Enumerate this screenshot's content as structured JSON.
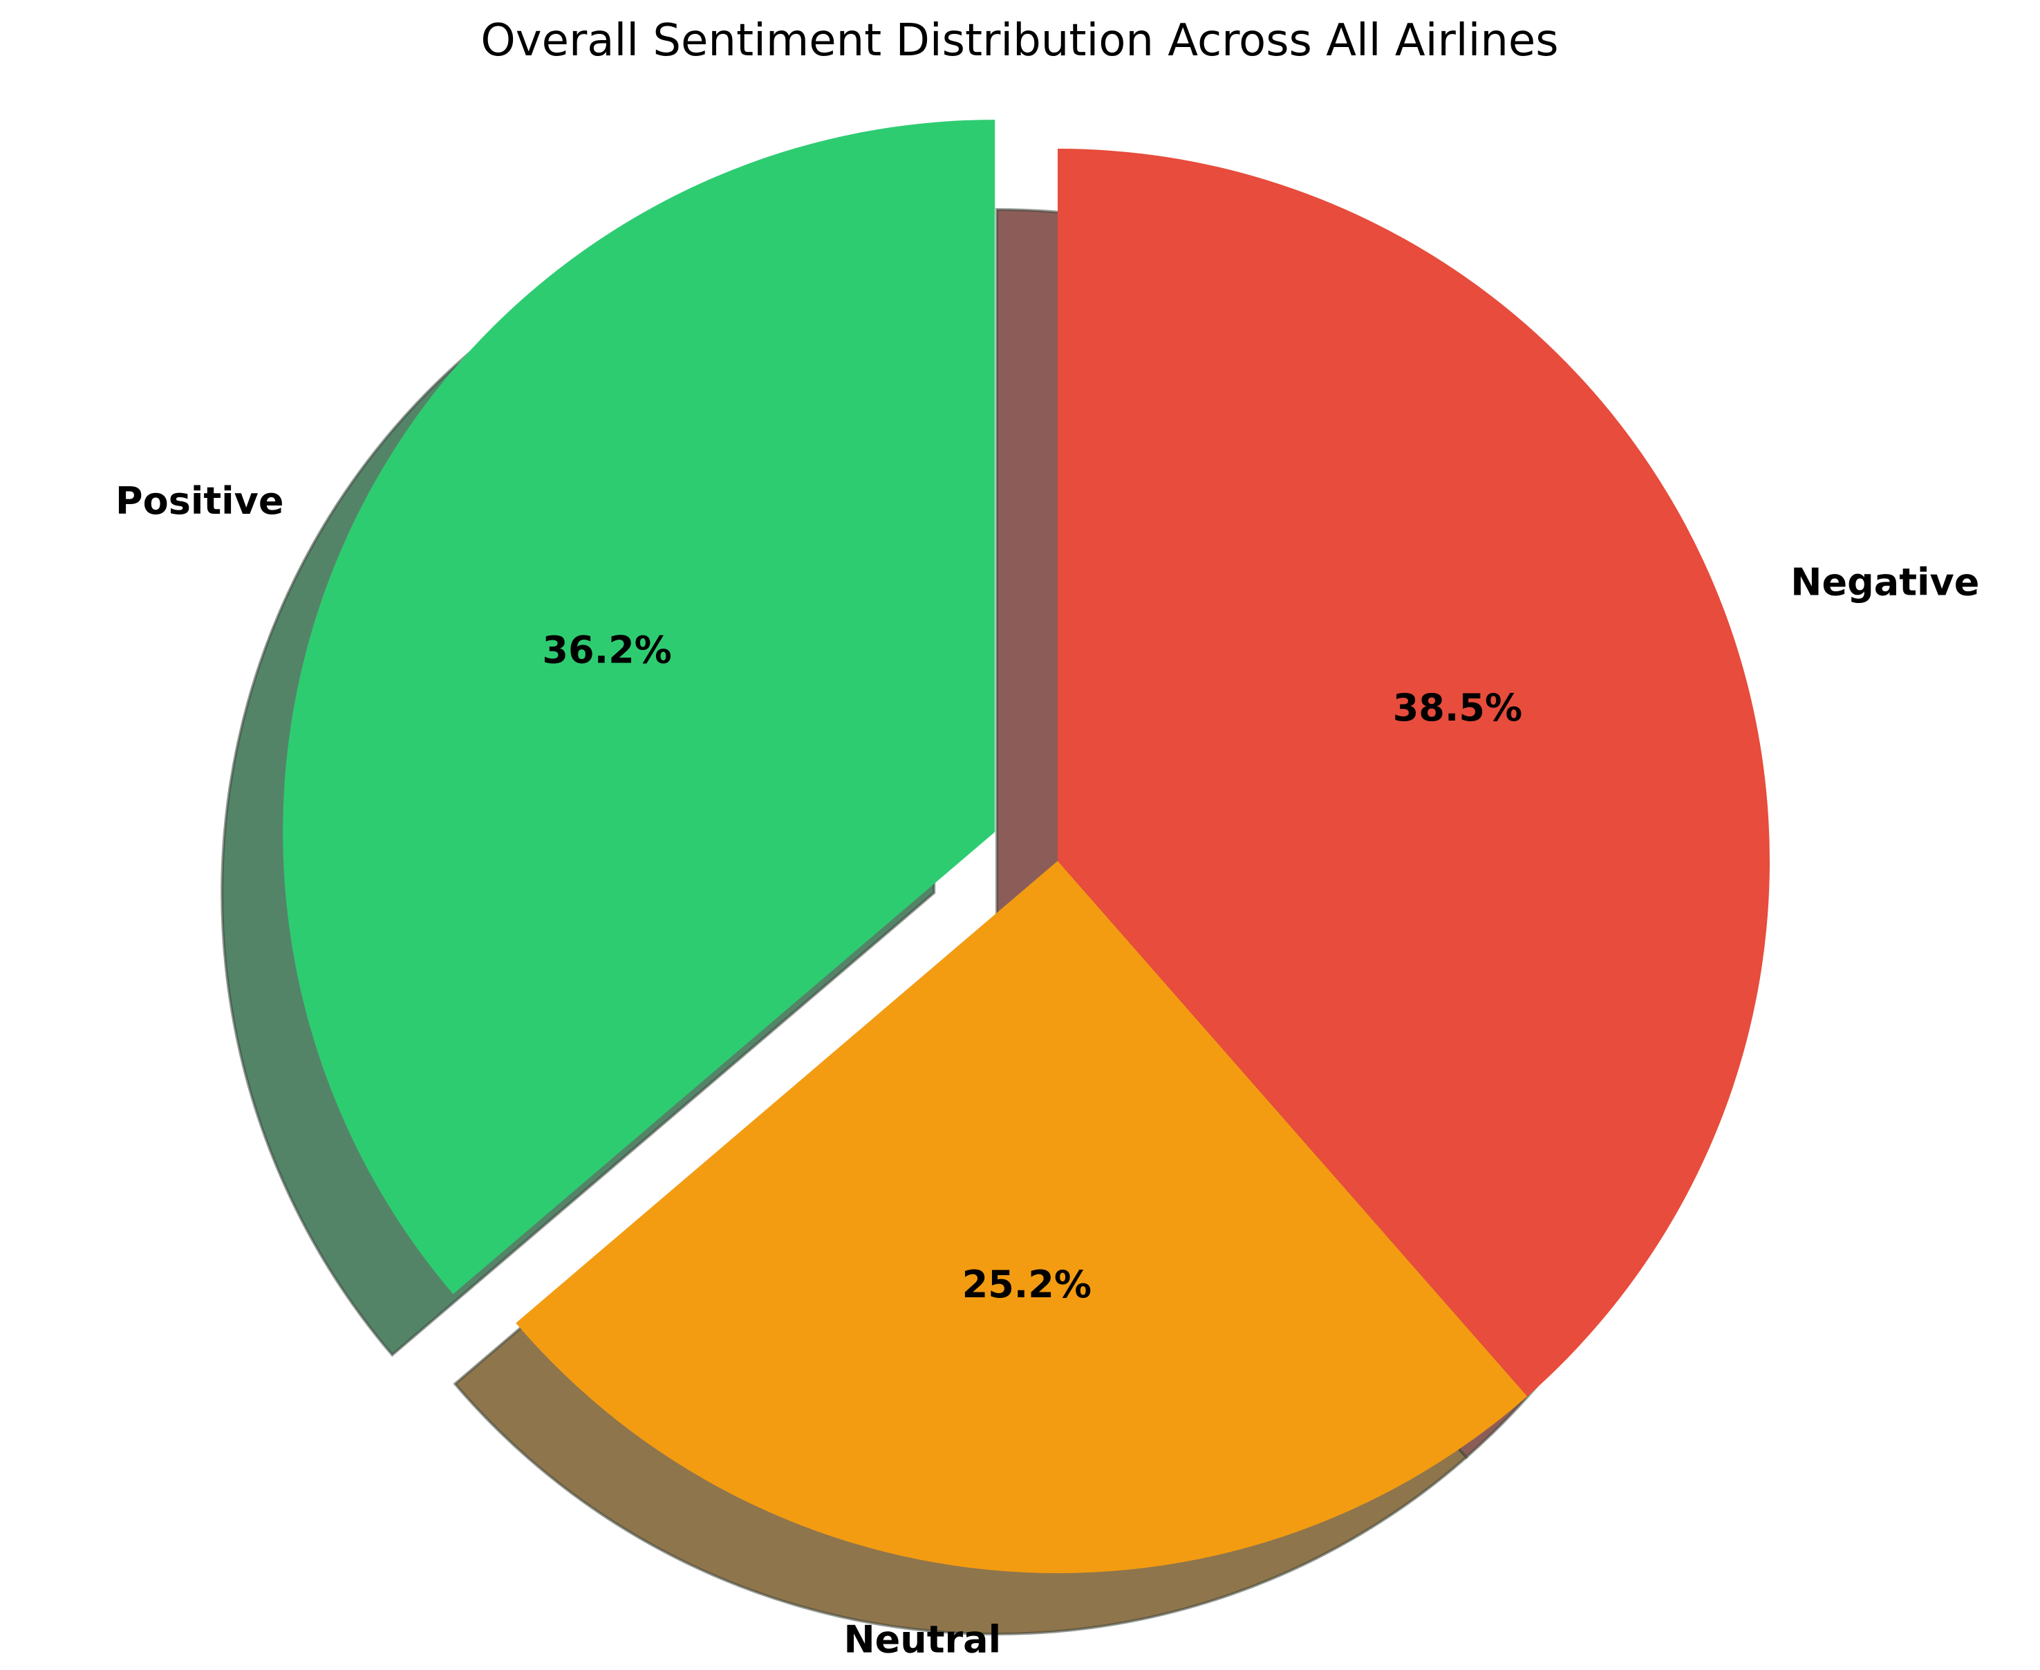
{
  "chart_data": {
    "type": "pie",
    "title": "Overall Sentiment Distribution Across All Airlines",
    "categories": [
      "Positive",
      "Neutral",
      "Negative"
    ],
    "values": [
      36.2,
      25.2,
      38.5
    ],
    "percent_labels": [
      "36.2%",
      "25.2%",
      "38.5%"
    ],
    "colors": [
      "#2ecc71",
      "#f39c12",
      "#e74c3c"
    ],
    "exploded": [
      "Positive"
    ],
    "start_angle_degrees": 90,
    "direction": "counterclockwise",
    "shadow": true,
    "legend": "none"
  }
}
